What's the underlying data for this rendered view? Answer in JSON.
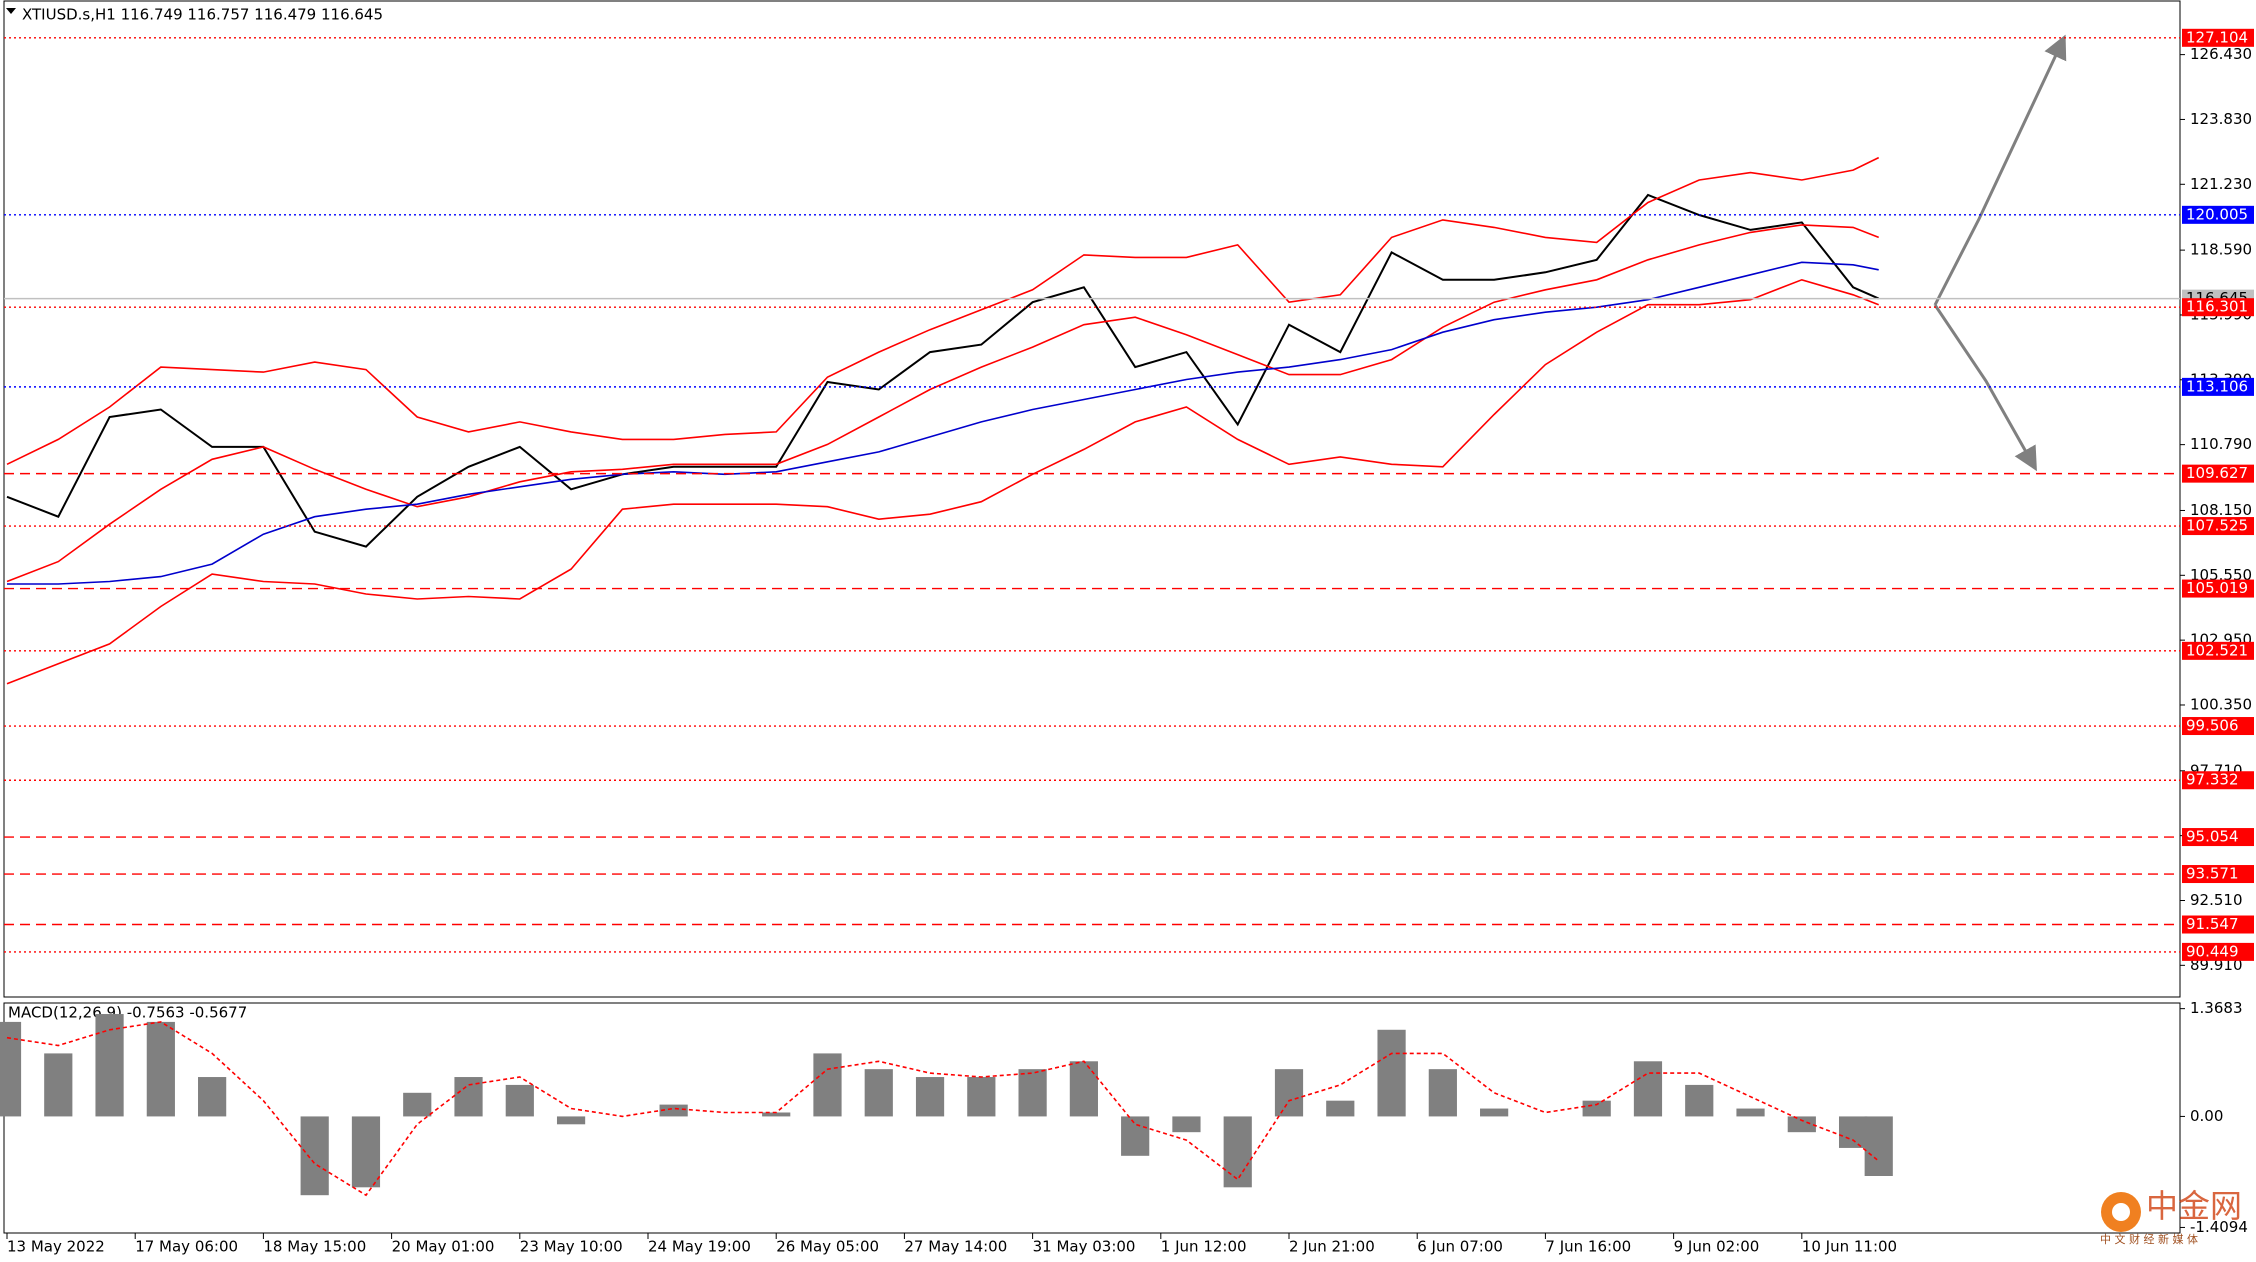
{
  "chart_data": [
    {
      "type": "line",
      "title": "XTIUSD.s,H1  116.749 116.757 116.479 116.645",
      "xlim": [
        0,
        339
      ],
      "x": [
        0,
        8,
        16,
        24,
        32,
        40,
        48,
        56,
        64,
        72,
        80,
        88,
        96,
        104,
        112,
        120,
        128,
        136,
        144,
        152,
        160,
        168,
        176,
        184,
        192,
        200,
        208,
        216,
        224,
        232,
        240,
        248,
        256,
        264,
        272,
        280,
        288,
        292
      ],
      "ylim": [
        88.64,
        128.62
      ],
      "yticks": [
        {
          "value": 126.43,
          "label": "126.430"
        },
        {
          "value": 123.83,
          "label": "123.830"
        },
        {
          "value": 121.23,
          "label": "121.230"
        },
        {
          "value": 118.59,
          "label": "118.590"
        },
        {
          "value": 115.99,
          "label": "115.990"
        },
        {
          "value": 113.39,
          "label": "113.390"
        },
        {
          "value": 110.79,
          "label": "110.790"
        },
        {
          "value": 108.15,
          "label": "108.150"
        },
        {
          "value": 105.55,
          "label": "105.550"
        },
        {
          "value": 102.95,
          "label": "102.950"
        },
        {
          "value": 100.35,
          "label": "100.350"
        },
        {
          "value": 97.71,
          "label": "97.710"
        },
        {
          "value": 95.11,
          "label": "95.110"
        },
        {
          "value": 92.51,
          "label": "92.510"
        },
        {
          "value": 89.91,
          "label": "89.910"
        }
      ],
      "series": [
        {
          "color": "#000000",
          "values": [
            108.7,
            107.9,
            111.9,
            112.2,
            110.7,
            110.7,
            107.3,
            106.7,
            108.7,
            109.9,
            110.7,
            109.0,
            109.6,
            109.9,
            109.9,
            109.9,
            113.3,
            113.0,
            114.5,
            114.8,
            116.5,
            117.1,
            113.9,
            114.5,
            111.6,
            115.6,
            114.5,
            118.5,
            117.4,
            117.4,
            117.7,
            118.2,
            120.8,
            120.0,
            119.4,
            119.7,
            117.1,
            116.645
          ]
        },
        {
          "color": "#ff0000",
          "values": [
            110.0,
            111.0,
            112.3,
            113.9,
            113.8,
            113.7,
            114.1,
            113.8,
            111.9,
            111.3,
            111.7,
            111.3,
            111.0,
            111.0,
            111.2,
            111.3,
            113.5,
            114.5,
            115.4,
            116.2,
            117.0,
            118.4,
            118.3,
            118.3,
            118.8,
            116.5,
            116.8,
            119.1,
            119.8,
            119.5,
            119.1,
            118.9,
            120.5,
            121.4,
            121.7,
            121.4,
            121.8,
            122.3
          ]
        },
        {
          "color": "#ff0000",
          "values": [
            105.3,
            106.1,
            107.6,
            109.0,
            110.2,
            110.7,
            109.8,
            109.0,
            108.3,
            108.7,
            109.3,
            109.7,
            109.8,
            110.0,
            110.0,
            110.0,
            110.8,
            111.9,
            113.0,
            113.9,
            114.7,
            115.6,
            115.9,
            115.2,
            114.4,
            113.6,
            113.6,
            114.2,
            115.5,
            116.5,
            117.0,
            117.4,
            118.2,
            118.8,
            119.3,
            119.6,
            119.5,
            119.1
          ]
        },
        {
          "color": "#ff0000",
          "values": [
            101.2,
            102.0,
            102.8,
            104.3,
            105.6,
            105.3,
            105.2,
            104.8,
            104.6,
            104.7,
            104.6,
            105.8,
            108.2,
            108.4,
            108.4,
            108.4,
            108.3,
            107.8,
            108.0,
            108.5,
            109.6,
            110.6,
            111.7,
            112.3,
            111.0,
            110.0,
            110.3,
            110.0,
            109.9,
            112.0,
            114.0,
            115.3,
            116.4,
            116.4,
            116.6,
            117.4,
            116.8,
            116.4
          ]
        },
        {
          "color": "#0000cc",
          "values": [
            105.2,
            105.2,
            105.3,
            105.5,
            106.0,
            107.2,
            107.9,
            108.2,
            108.4,
            108.8,
            109.1,
            109.4,
            109.6,
            109.7,
            109.6,
            109.7,
            110.1,
            110.5,
            111.1,
            111.7,
            112.2,
            112.6,
            113.0,
            113.4,
            113.7,
            113.9,
            114.2,
            114.6,
            115.3,
            115.8,
            116.1,
            116.3,
            116.6,
            117.1,
            117.6,
            118.1,
            118.0,
            117.8
          ]
        }
      ],
      "levels": [
        {
          "value": 127.104,
          "color": "#ff0000",
          "text_color": "#ffffff",
          "style": "dotted"
        },
        {
          "value": 120.005,
          "color": "#0000ff",
          "text_color": "#ffffff",
          "style": "dotted"
        },
        {
          "value": 116.645,
          "color": "#c0c0c0",
          "text_color": "#000000",
          "style": "solid"
        },
        {
          "value": 116.301,
          "color": "#ff0000",
          "text_color": "#ffffff",
          "style": "dotted"
        },
        {
          "value": 113.106,
          "color": "#0000ff",
          "text_color": "#ffffff",
          "style": "dotted"
        },
        {
          "value": 109.627,
          "color": "#ff0000",
          "text_color": "#ffffff",
          "style": "dashed"
        },
        {
          "value": 107.525,
          "color": "#ff0000",
          "text_color": "#ffffff",
          "style": "dotted"
        },
        {
          "value": 105.019,
          "color": "#ff0000",
          "text_color": "#ffffff",
          "style": "dashed"
        },
        {
          "value": 102.521,
          "color": "#ff0000",
          "text_color": "#ffffff",
          "style": "dotted"
        },
        {
          "value": 99.506,
          "color": "#ff0000",
          "text_color": "#ffffff",
          "style": "dotted"
        },
        {
          "value": 97.332,
          "color": "#ff0000",
          "text_color": "#ffffff",
          "style": "dotted"
        },
        {
          "value": 95.054,
          "color": "#ff0000",
          "text_color": "#ffffff",
          "style": "dashed"
        },
        {
          "value": 93.571,
          "color": "#ff0000",
          "text_color": "#ffffff",
          "style": "dashed"
        },
        {
          "value": 91.547,
          "color": "#ff0000",
          "text_color": "#ffffff",
          "style": "dashed"
        },
        {
          "value": 90.449,
          "color": "#ff0000",
          "text_color": "#ffffff",
          "style": "dotted"
        }
      ]
    },
    {
      "type": "bar",
      "title": "MACD(12,26,9) -0.7563 -0.5677",
      "xlim": [
        0,
        339
      ],
      "x": [
        0,
        8,
        16,
        24,
        32,
        40,
        48,
        56,
        64,
        72,
        80,
        88,
        96,
        104,
        112,
        120,
        128,
        136,
        144,
        152,
        160,
        168,
        176,
        184,
        192,
        200,
        208,
        216,
        224,
        232,
        240,
        248,
        256,
        264,
        272,
        280,
        288,
        292
      ],
      "xticks": [
        {
          "value": 0,
          "label": "13 May 2022"
        },
        {
          "value": 20,
          "label": "17 May 06:00"
        },
        {
          "value": 40,
          "label": "18 May 15:00"
        },
        {
          "value": 60,
          "label": "20 May 01:00"
        },
        {
          "value": 80,
          "label": "23 May 10:00"
        },
        {
          "value": 100,
          "label": "24 May 19:00"
        },
        {
          "value": 120,
          "label": "26 May 05:00"
        },
        {
          "value": 140,
          "label": "27 May 14:00"
        },
        {
          "value": 160,
          "label": "31 May 03:00"
        },
        {
          "value": 180,
          "label": "1 Jun 12:00"
        },
        {
          "value": 200,
          "label": "2 Jun 21:00"
        },
        {
          "value": 220,
          "label": "6 Jun 07:00"
        },
        {
          "value": 240,
          "label": "7 Jun 16:00"
        },
        {
          "value": 260,
          "label": "9 Jun 02:00"
        },
        {
          "value": 280,
          "label": "10 Jun 11:00"
        }
      ],
      "ylim": [
        -1.48,
        1.44
      ],
      "yticks": [
        1.3683,
        {
          "value": 0,
          "label": "0.00"
        },
        -1.4094
      ],
      "series": [
        {
          "color": "#808080",
          "values": [
            1.2,
            0.8,
            1.3,
            1.2,
            0.5,
            0.0,
            -1.0,
            -0.9,
            0.3,
            0.5,
            0.4,
            -0.1,
            0.0,
            0.15,
            0.0,
            0.05,
            0.8,
            0.6,
            0.5,
            0.5,
            0.6,
            0.7,
            -0.5,
            -0.2,
            -0.9,
            0.6,
            0.2,
            1.1,
            0.6,
            0.1,
            0.0,
            0.2,
            0.7,
            0.4,
            0.1,
            -0.2,
            -0.4,
            -0.7563
          ]
        },
        {
          "color": "#ff0000",
          "type": "line",
          "values": [
            1.0,
            0.9,
            1.1,
            1.2,
            0.8,
            0.2,
            -0.6,
            -1.0,
            -0.1,
            0.4,
            0.5,
            0.1,
            0.0,
            0.1,
            0.05,
            0.05,
            0.6,
            0.7,
            0.55,
            0.5,
            0.55,
            0.7,
            -0.1,
            -0.3,
            -0.8,
            0.2,
            0.4,
            0.8,
            0.8,
            0.3,
            0.05,
            0.15,
            0.55,
            0.55,
            0.25,
            -0.05,
            -0.3,
            -0.5677
          ]
        }
      ]
    }
  ],
  "watermark": {
    "title": "中金网",
    "subtitle": "中 文 财 经 新 媒 体"
  }
}
